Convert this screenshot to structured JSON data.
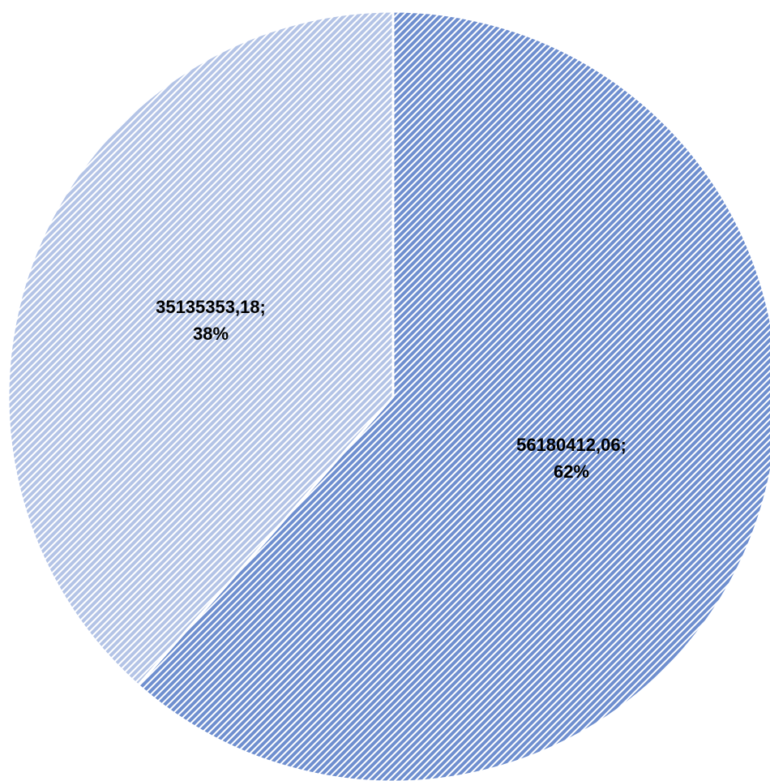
{
  "chart_data": {
    "type": "pie",
    "start_angle_deg": 0,
    "direction": "clockwise",
    "slices": [
      {
        "value": 56180412.06,
        "label_value": "56180412,06;",
        "label_percent": "62%",
        "color": "#6f8fcf",
        "pattern": "dark-diagonal-hatch"
      },
      {
        "value": 35135353.18,
        "label_value": "35135353,18;",
        "label_percent": "38%",
        "color": "#b4c4e6",
        "pattern": "light-diagonal-hatch"
      }
    ],
    "slice_border_color": "#ffffff",
    "legend": "none",
    "title": ""
  }
}
